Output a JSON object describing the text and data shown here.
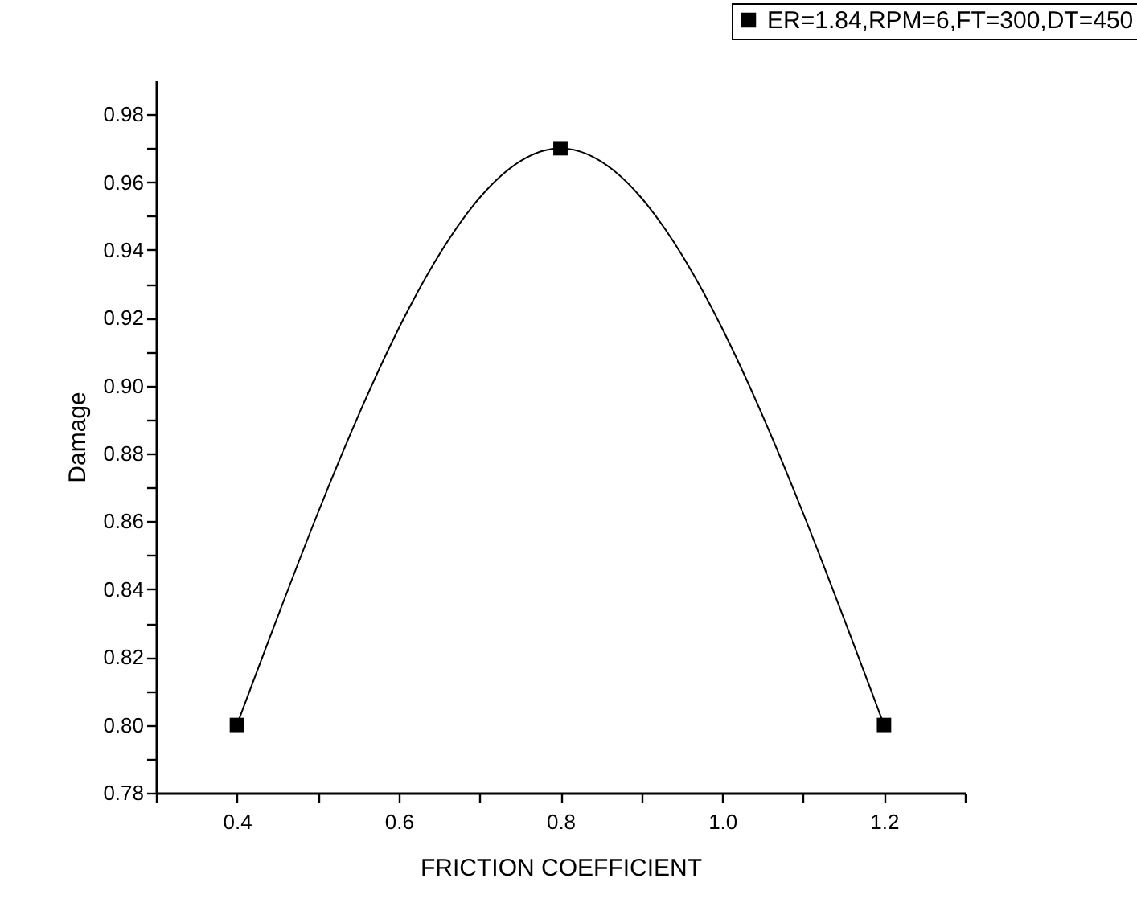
{
  "chart_data": {
    "type": "line",
    "xlabel": "FRICTION COEFFICIENT",
    "ylabel": "Damage",
    "x": [
      0.4,
      0.8,
      1.2
    ],
    "series": [
      {
        "name": "ER=1.84,RPM=6,FT=300,DT=450",
        "color": "#000000",
        "values": [
          0.8,
          0.97,
          0.8
        ]
      }
    ],
    "xlim": [
      0.3,
      1.3
    ],
    "xticks": [
      {
        "value": 0.3,
        "label": null
      },
      0.4,
      {
        "value": 0.5,
        "label": null
      },
      0.6,
      {
        "value": 0.7,
        "label": null
      },
      0.8,
      {
        "value": 0.9,
        "label": null
      },
      {
        "value": 1.0,
        "label": "1.0"
      },
      {
        "value": 1.1,
        "label": null
      },
      1.2,
      {
        "value": 1.3,
        "label": null
      }
    ],
    "ylim": [
      0.78,
      0.99
    ],
    "yticks": [
      0.78,
      {
        "value": 0.79,
        "label": null
      },
      {
        "value": 0.8,
        "label": "0.80"
      },
      {
        "value": 0.81,
        "label": null
      },
      0.82,
      {
        "value": 0.83,
        "label": null
      },
      0.84,
      {
        "value": 0.85,
        "label": null
      },
      0.86,
      {
        "value": 0.87,
        "label": null
      },
      0.88,
      {
        "value": 0.89,
        "label": null
      },
      {
        "value": 0.9,
        "label": "0.90"
      },
      {
        "value": 0.91,
        "label": null
      },
      0.92,
      {
        "value": 0.93,
        "label": null
      },
      0.94,
      {
        "value": 0.95,
        "label": null
      },
      0.96,
      {
        "value": 0.97,
        "label": null
      },
      0.98
    ],
    "grid": false,
    "legend": "top right",
    "marker": "square",
    "line_style": "solid"
  }
}
